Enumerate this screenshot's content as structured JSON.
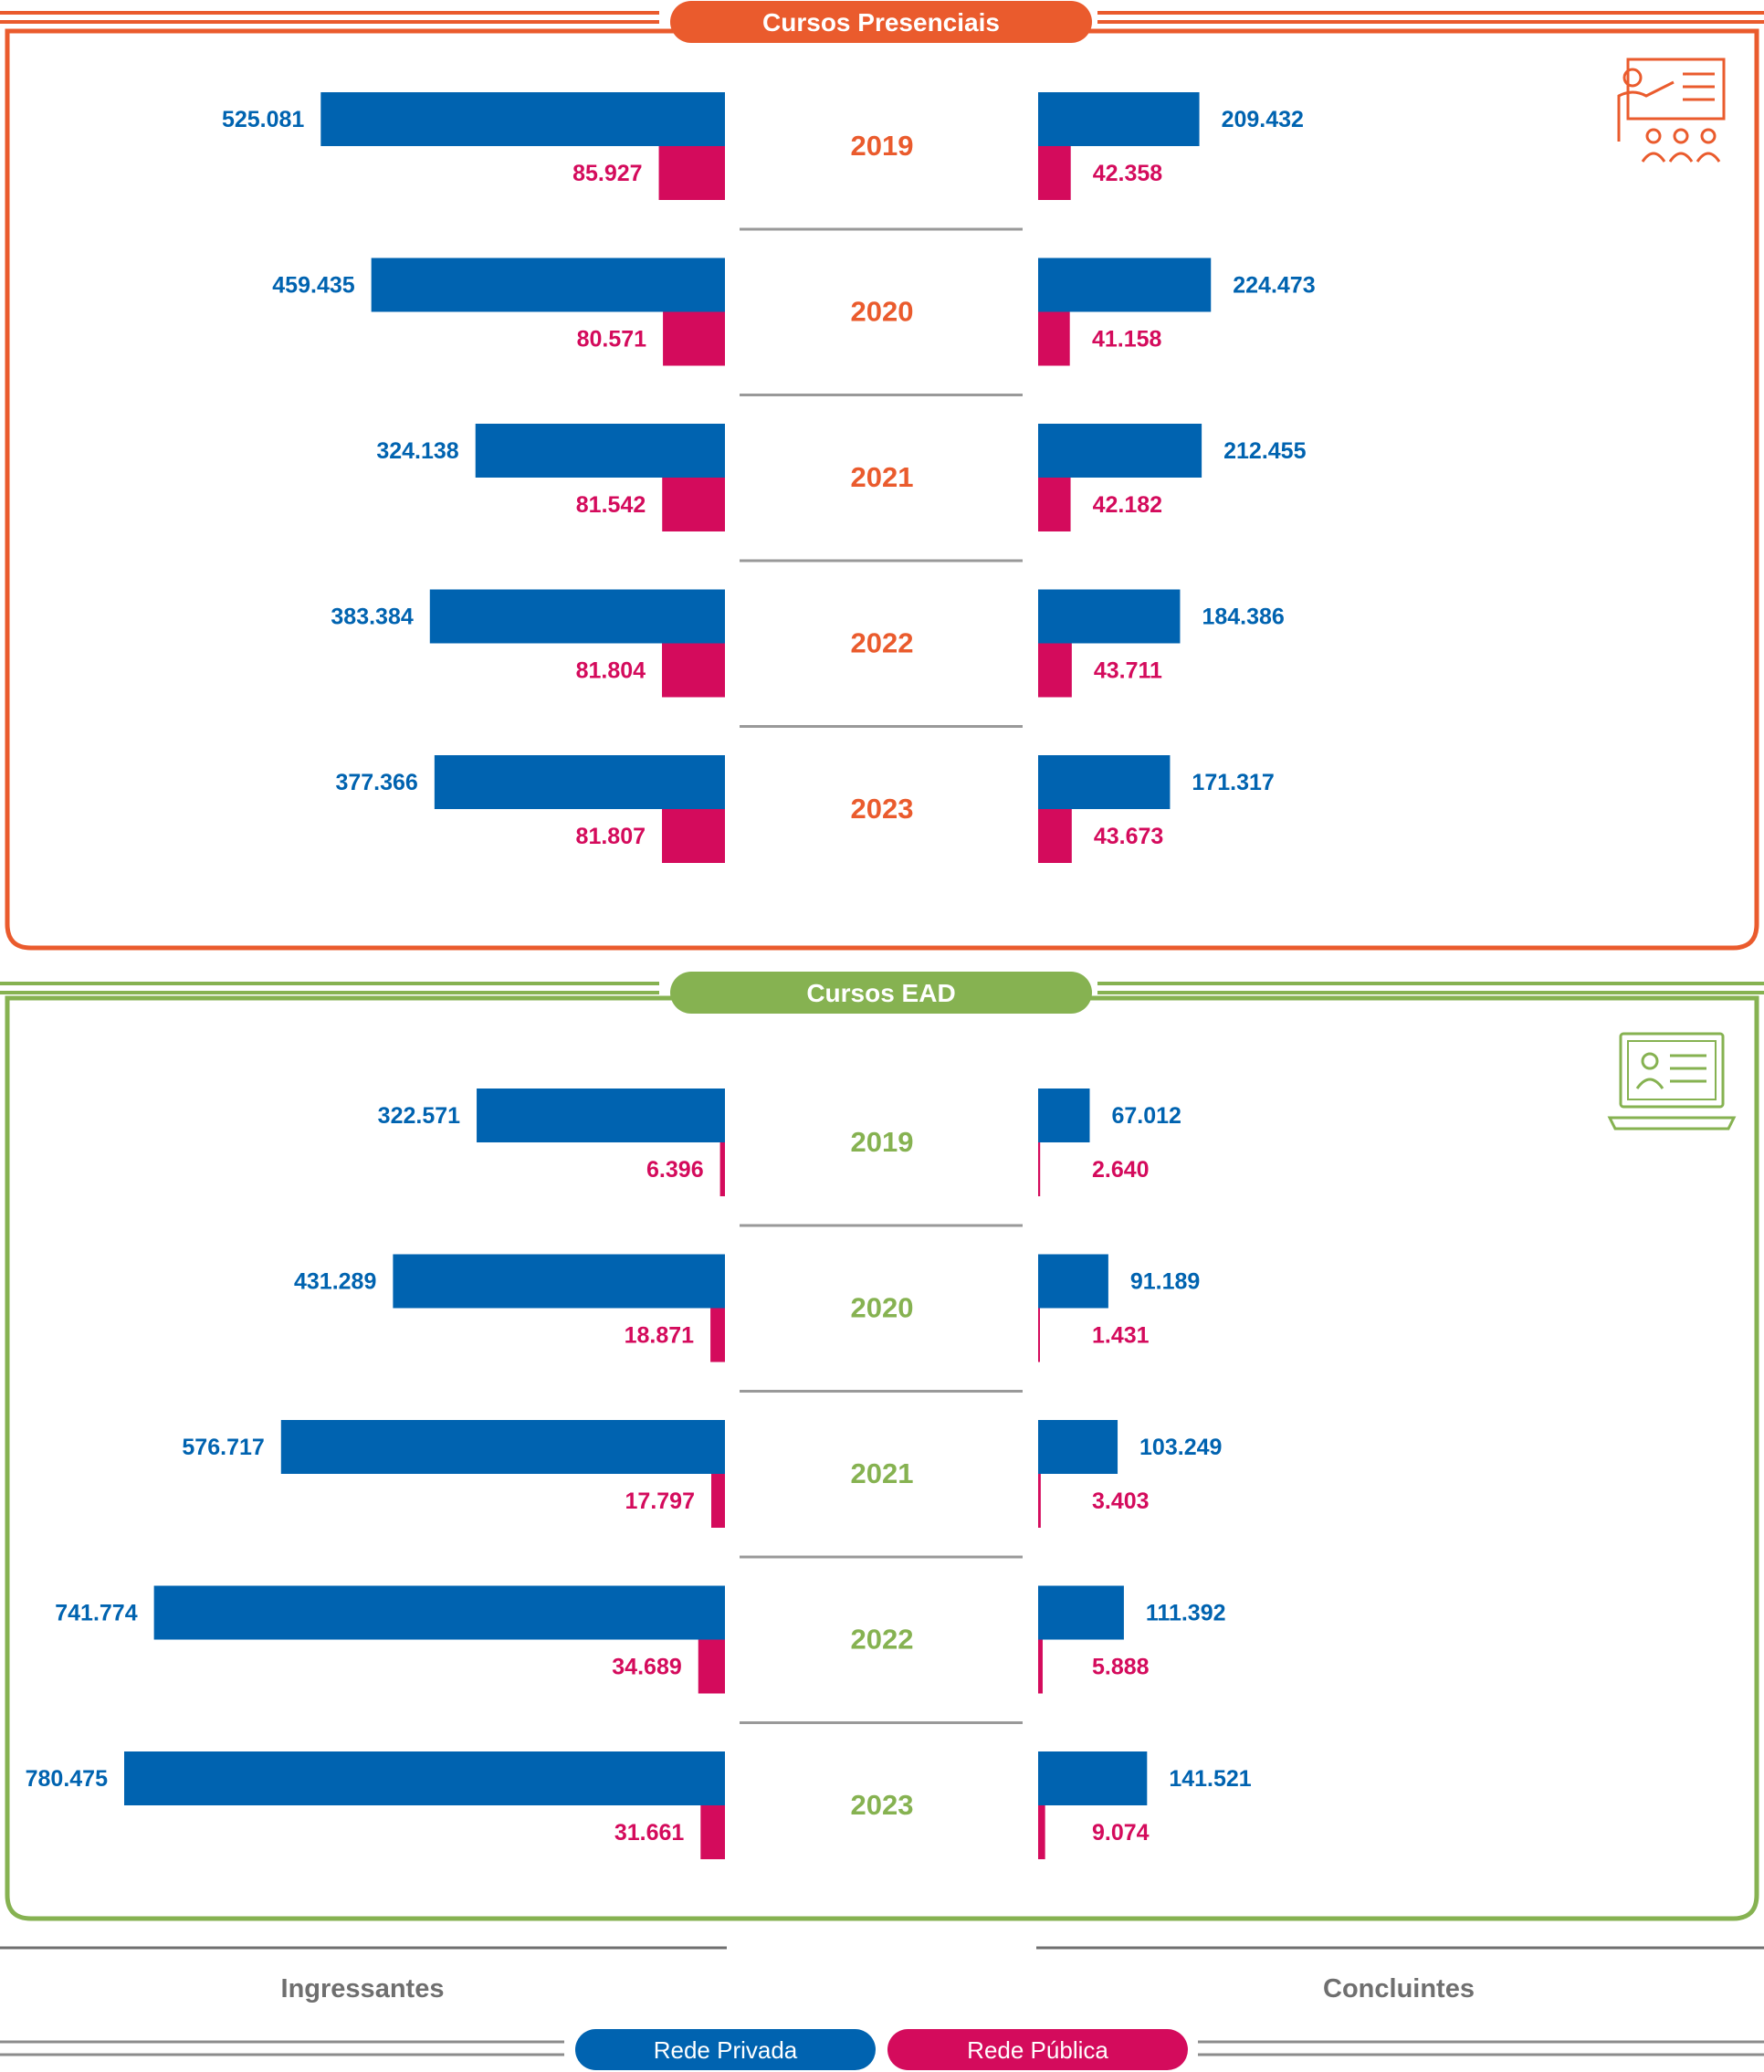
{
  "colors": {
    "presencial": "#EA5B2D",
    "ead": "#86B251",
    "privada": "#0063B0",
    "publica": "#D40B5C",
    "divider": "#999999",
    "footer_text": "#6F6F6F"
  },
  "chart_data": [
    {
      "type": "bar",
      "title": "Cursos Presenciais",
      "icon": "classroom-teacher-icon",
      "categories": [
        "2019",
        "2020",
        "2021",
        "2022",
        "2023"
      ],
      "ingressantes": {
        "privada": [
          525081,
          459435,
          324138,
          383384,
          377366
        ],
        "publica": [
          85927,
          80571,
          81542,
          81804,
          81807
        ],
        "privada_labels": [
          "525.081",
          "459.435",
          "324.138",
          "383.384",
          "377.366"
        ],
        "publica_labels": [
          "85.927",
          "80.571",
          "81.542",
          "81.804",
          "81.807"
        ]
      },
      "concluintes": {
        "privada": [
          209432,
          224473,
          212455,
          184386,
          171317
        ],
        "publica": [
          42358,
          41158,
          42182,
          43711,
          43673
        ],
        "privada_labels": [
          "209.432",
          "224.473",
          "212.455",
          "184.386",
          "171.317"
        ],
        "publica_labels": [
          "42.358",
          "41.158",
          "42.182",
          "43.711",
          "43.673"
        ]
      }
    },
    {
      "type": "bar",
      "title": "Cursos EAD",
      "icon": "laptop-online-class-icon",
      "categories": [
        "2019",
        "2020",
        "2021",
        "2022",
        "2023"
      ],
      "ingressantes": {
        "privada": [
          322571,
          431289,
          576717,
          741774,
          780475
        ],
        "publica": [
          6396,
          18871,
          17797,
          34689,
          31661
        ],
        "privada_labels": [
          "322.571",
          "431.289",
          "576.717",
          "741.774",
          "780.475"
        ],
        "publica_labels": [
          "6.396",
          "18.871",
          "17.797",
          "34.689",
          "31.661"
        ]
      },
      "concluintes": {
        "privada": [
          67012,
          91189,
          103249,
          111392,
          141521
        ],
        "publica": [
          2640,
          1431,
          3403,
          5888,
          9074
        ],
        "privada_labels": [
          "67.012",
          "91.189",
          "103.249",
          "111.392",
          "141.521"
        ],
        "publica_labels": [
          "2.640",
          "1.431",
          "3.403",
          "5.888",
          "9.074"
        ]
      }
    }
  ],
  "footer": {
    "left_label": "Ingressantes",
    "right_label": "Concluintes",
    "legend_privada": "Rede Privada",
    "legend_publica": "Rede Pública"
  }
}
